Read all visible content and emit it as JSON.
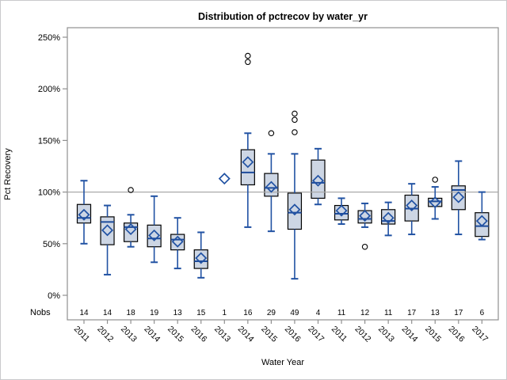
{
  "chart_data": {
    "type": "boxplot",
    "title": "Distribution of pctrecov by water_yr",
    "xlabel": "Water Year",
    "ylabel": "Pct Recovery",
    "nobs_row_label": "Nobs",
    "y_tick_values": [
      0,
      50,
      100,
      150,
      200,
      250
    ],
    "y_tick_labels": [
      "0%",
      "50%",
      "100%",
      "150%",
      "200%",
      "250%"
    ],
    "ylim": [
      0,
      258
    ],
    "reference_line_value": 100,
    "grid": "single horizontal reference line at 100% only",
    "legend_position": "none",
    "mean_marker": "open diamond",
    "boxes": [
      {
        "label": "2011",
        "nobs": 14,
        "low": 50,
        "q1": 70,
        "median": 75,
        "mean": 78,
        "q3": 88,
        "high": 111,
        "outliers": []
      },
      {
        "label": "2012",
        "nobs": 14,
        "low": 20,
        "q1": 49,
        "median": 71,
        "mean": 63,
        "q3": 76,
        "high": 87,
        "outliers": []
      },
      {
        "label": "2013",
        "nobs": 18,
        "low": 47,
        "q1": 52,
        "median": 66,
        "mean": 64,
        "q3": 70,
        "high": 78,
        "outliers": [
          102
        ]
      },
      {
        "label": "2014",
        "nobs": 19,
        "low": 32,
        "q1": 47,
        "median": 55,
        "mean": 58,
        "q3": 68,
        "high": 96,
        "outliers": []
      },
      {
        "label": "2015",
        "nobs": 13,
        "low": 26,
        "q1": 44,
        "median": 54,
        "mean": 52,
        "q3": 59,
        "high": 75,
        "outliers": []
      },
      {
        "label": "2016",
        "nobs": 15,
        "low": 17,
        "q1": 26,
        "median": 33,
        "mean": 36,
        "q3": 44,
        "high": 61,
        "outliers": []
      },
      {
        "label": "2013",
        "nobs": 1,
        "single": true,
        "low": 113,
        "q1": 113,
        "median": 113,
        "mean": 113,
        "q3": 113,
        "high": 113,
        "outliers": []
      },
      {
        "label": "2014",
        "nobs": 16,
        "low": 66,
        "q1": 107,
        "median": 119,
        "mean": 129,
        "q3": 141,
        "high": 157,
        "outliers": [
          226,
          232
        ]
      },
      {
        "label": "2015",
        "nobs": 29,
        "low": 62,
        "q1": 96,
        "median": 104,
        "mean": 105,
        "q3": 118,
        "high": 137,
        "outliers": [
          157
        ]
      },
      {
        "label": "2016",
        "nobs": 49,
        "low": 16,
        "q1": 64,
        "median": 80,
        "mean": 83,
        "q3": 99,
        "high": 137,
        "outliers": [
          158,
          170,
          176
        ]
      },
      {
        "label": "2017",
        "nobs": 4,
        "low": 88,
        "q1": 94,
        "median": 109,
        "mean": 111,
        "q3": 131,
        "high": 142,
        "outliers": []
      },
      {
        "label": "2011",
        "nobs": 11,
        "low": 69,
        "q1": 73,
        "median": 79,
        "mean": 82,
        "q3": 87,
        "high": 94,
        "outliers": []
      },
      {
        "label": "2012",
        "nobs": 12,
        "low": 66,
        "q1": 70,
        "median": 74,
        "mean": 77,
        "q3": 82,
        "high": 89,
        "outliers": [
          47
        ]
      },
      {
        "label": "2013",
        "nobs": 11,
        "low": 58,
        "q1": 69,
        "median": 72,
        "mean": 75,
        "q3": 83,
        "high": 90,
        "outliers": []
      },
      {
        "label": "2014",
        "nobs": 17,
        "low": 59,
        "q1": 72,
        "median": 84,
        "mean": 87,
        "q3": 97,
        "high": 108,
        "outliers": []
      },
      {
        "label": "2015",
        "nobs": 13,
        "low": 74,
        "q1": 86,
        "median": 91,
        "mean": 90,
        "q3": 94,
        "high": 105,
        "outliers": [
          112
        ]
      },
      {
        "label": "2016",
        "nobs": 17,
        "low": 59,
        "q1": 83,
        "median": 102,
        "mean": 95,
        "q3": 106,
        "high": 130,
        "outliers": []
      },
      {
        "label": "2017",
        "nobs": 6,
        "low": 54,
        "q1": 57,
        "median": 67,
        "mean": 72,
        "q3": 80,
        "high": 100,
        "outliers": []
      }
    ]
  },
  "colors": {
    "box_fill": "#cdd6e4",
    "box_border": "#000000",
    "whisker_blue": "#2152a3",
    "median_blue": "#1d4b9b",
    "mean_diamond": "#2152a3",
    "outlier_stroke": "#000000",
    "reference_line": "#a9a9a9",
    "frame": "#8f8f8f",
    "tick": "#8f8f8f",
    "text": "#000000",
    "outer_border": "#c9c9cc",
    "background": "#ffffff"
  }
}
